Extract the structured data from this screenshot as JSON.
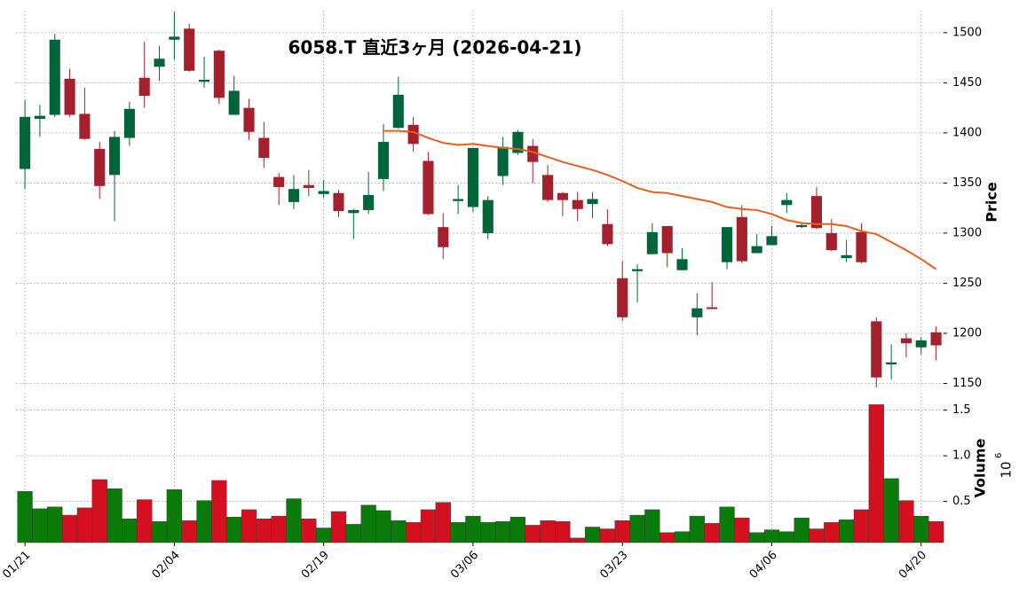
{
  "chart_data": {
    "type": "candlestick",
    "title": "6058.T  直近3ヶ月  (2026-04-21)",
    "categories": [
      "01/21",
      null,
      null,
      null,
      null,
      null,
      null,
      null,
      null,
      null,
      "02/04",
      null,
      null,
      null,
      null,
      null,
      null,
      null,
      null,
      null,
      "02/19",
      null,
      null,
      null,
      null,
      null,
      null,
      null,
      null,
      null,
      "03/06",
      null,
      null,
      null,
      null,
      null,
      null,
      null,
      null,
      null,
      "03/23",
      null,
      null,
      null,
      null,
      null,
      null,
      null,
      null,
      null,
      "04/06",
      null,
      null,
      null,
      null,
      null,
      null,
      null,
      null,
      null,
      "04/20",
      null
    ],
    "open": [
      1364,
      1414,
      1418,
      1454,
      1419,
      1384,
      1358,
      1395,
      1455,
      1466,
      1493,
      1504,
      1451,
      1482,
      1418,
      1425,
      1395,
      1356,
      1331,
      1348,
      1339,
      1340,
      1320,
      1323,
      1354,
      1405,
      1408,
      1372,
      1306,
      1332,
      1326,
      1300,
      1357,
      1380,
      1387,
      1358,
      1340,
      1333,
      1329,
      1309,
      1255,
      1262,
      1279,
      1307,
      1263,
      1216,
      1226,
      1271,
      1316,
      1280,
      1288,
      1328,
      1306,
      1337,
      1300,
      1275,
      1301,
      1212,
      1169,
      1195,
      1186,
      1201
    ],
    "high": [
      1433,
      1428,
      1499,
      1464,
      1445,
      1391,
      1402,
      1431,
      1491,
      1487,
      1521,
      1509,
      1476,
      1483,
      1457,
      1434,
      1411,
      1360,
      1358,
      1363,
      1353,
      1343,
      1324,
      1361,
      1409,
      1456,
      1416,
      1381,
      1320,
      1348,
      1385,
      1337,
      1396,
      1403,
      1394,
      1368,
      1341,
      1341,
      1341,
      1324,
      1272,
      1269,
      1310,
      1307,
      1285,
      1240,
      1251,
      1306,
      1328,
      1299,
      1307,
      1340,
      1311,
      1346,
      1314,
      1293,
      1310,
      1216,
      1189,
      1200,
      1196,
      1207
    ],
    "low": [
      1344,
      1396,
      1416,
      1416,
      1393,
      1334,
      1312,
      1387,
      1425,
      1452,
      1473,
      1461,
      1445,
      1429,
      1418,
      1393,
      1365,
      1328,
      1324,
      1337,
      1335,
      1316,
      1294,
      1319,
      1342,
      1404,
      1381,
      1318,
      1274,
      1319,
      1321,
      1294,
      1348,
      1378,
      1350,
      1331,
      1317,
      1312,
      1315,
      1287,
      1212,
      1231,
      1279,
      1266,
      1263,
      1198,
      1225,
      1264,
      1270,
      1280,
      1288,
      1320,
      1305,
      1304,
      1282,
      1271,
      1270,
      1146,
      1154,
      1176,
      1179,
      1173
    ],
    "close": [
      1416,
      1417,
      1493,
      1418,
      1394,
      1347,
      1396,
      1424,
      1437,
      1474,
      1496,
      1462,
      1453,
      1435,
      1442,
      1401,
      1375,
      1346,
      1344,
      1345,
      1342,
      1322,
      1323,
      1338,
      1391,
      1438,
      1389,
      1319,
      1286,
      1334,
      1385,
      1333,
      1386,
      1401,
      1371,
      1333,
      1333,
      1324,
      1334,
      1289,
      1216,
      1264,
      1301,
      1280,
      1274,
      1225,
      1225,
      1306,
      1272,
      1287,
      1297,
      1333,
      1308,
      1305,
      1283,
      1278,
      1271,
      1156,
      1171,
      1190,
      1193,
      1188
    ],
    "up_color": "#00663a",
    "down_color": "#a3202c",
    "moving_average": {
      "color": "#e8601c",
      "values": [
        null,
        null,
        null,
        null,
        null,
        null,
        null,
        null,
        null,
        null,
        null,
        null,
        null,
        null,
        null,
        null,
        null,
        null,
        null,
        null,
        null,
        null,
        null,
        null,
        1402,
        1402,
        1401,
        1395,
        1390,
        1388,
        1389,
        1387,
        1385,
        1384,
        1381,
        1376,
        1371,
        1367,
        1363,
        1358,
        1352,
        1345,
        1341,
        1340,
        1337,
        1334,
        1331,
        1326,
        1324,
        1323,
        1319,
        1313,
        1310,
        1309,
        1309,
        1307,
        1302,
        1299,
        1291,
        1283,
        1274,
        1264
      ]
    },
    "ylabel": "Price",
    "ylim": [
      1146,
      1522
    ],
    "yticks": [
      1150,
      1200,
      1250,
      1300,
      1350,
      1400,
      1450,
      1500
    ],
    "grid": true,
    "volume": {
      "ylabel": "Volume",
      "scale_base": "10",
      "scale_exponent": "6",
      "up_color": "#0a7a0a",
      "down_color": "#d41020",
      "values": [
        0.61,
        0.42,
        0.44,
        0.35,
        0.43,
        0.74,
        0.64,
        0.31,
        0.52,
        0.28,
        0.63,
        0.29,
        0.51,
        0.73,
        0.33,
        0.41,
        0.31,
        0.34,
        0.53,
        0.31,
        0.21,
        0.39,
        0.25,
        0.46,
        0.4,
        0.29,
        0.27,
        0.41,
        0.49,
        0.27,
        0.34,
        0.27,
        0.28,
        0.33,
        0.24,
        0.29,
        0.28,
        0.1,
        0.22,
        0.2,
        0.29,
        0.35,
        0.41,
        0.16,
        0.17,
        0.34,
        0.26,
        0.44,
        0.32,
        0.16,
        0.19,
        0.17,
        0.32,
        0.2,
        0.27,
        0.3,
        0.41,
        1.56,
        0.75,
        0.51,
        0.34,
        0.28
      ],
      "ylim": [
        0.05,
        1.69
      ],
      "yticks": [
        0.5,
        {
          "value": 1,
          "label": "1.0"
        },
        1.5
      ]
    }
  }
}
